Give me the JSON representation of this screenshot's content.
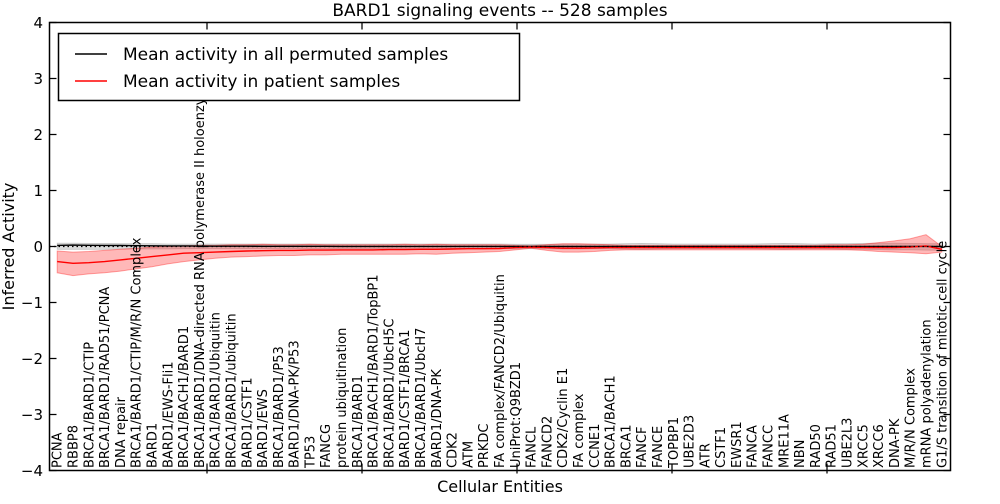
{
  "chart_data": {
    "type": "line",
    "title": "BARD1 signaling events -- 528 samples",
    "xlabel": "Cellular Entities",
    "ylabel": "Inferred Activity",
    "ylim": [
      -4,
      4
    ],
    "grid": false,
    "legend_position": "upper left",
    "zero_reference_line": {
      "value": 0,
      "style": "dotted",
      "color": "#000000"
    },
    "yticks": {
      "values": [
        4,
        3,
        2,
        1,
        0,
        -1,
        -2,
        -3,
        -4
      ],
      "labels": [
        "4",
        "3",
        "2",
        "1",
        "0",
        "−1",
        "−2",
        "−3",
        "−4"
      ]
    },
    "categories": [
      "PCNA",
      "RBBP8",
      "BRCA1/BARD1/CTIP",
      "BRCA1/BARD1/RAD51/PCNA",
      "DNA repair",
      "BRCA1/BARD1/CTIP/M/R/N Complex",
      "BARD1",
      "BARD1/EWS-Fli1",
      "BRCA1/BACH1/BARD1",
      "BRCA1/BARD1/DNA-directed RNA polymerase II holoenzyme",
      "BRCA1/BARD1/Ubiquitin",
      "BRCA1/BARD1/ubiquitin",
      "BARD1/CSTF1",
      "BARD1/EWS",
      "BRCA1/BARD1/P53",
      "BARD1/DNA-PK/P53",
      "TP53",
      "FANCG",
      "protein ubiquitination",
      "BRCA1/BARD1",
      "BRCA1/BACH1/BARD1/TopBP1",
      "BRCA1/BARD1/UbcH5C",
      "BARD1/CSTF1/BRCA1",
      "BRCA1/BARD1/UbcH7",
      "BARD1/DNA-PK",
      "CDK2",
      "ATM",
      "PRKDC",
      "FA complex/FANCD2/Ubiquitin",
      "UniProt:Q9BZD1",
      "FANCL",
      "FANCD2",
      "CDK2/Cyclin E1",
      "FA complex",
      "CCNE1",
      "BRCA1/BACH1",
      "BRCA1",
      "FANCF",
      "FANCE",
      "TOPBP1",
      "UBE2D3",
      "ATR",
      "CSTF1",
      "EWSR1",
      "FANCA",
      "FANCC",
      "MRE11A",
      "NBN",
      "RAD50",
      "RAD51",
      "UBE2L3",
      "XRCC5",
      "XRCC6",
      "DNA-PK",
      "M/R/N Complex",
      "mRNA polyadenylation",
      "G1/S transition of mitotic cell cycle"
    ],
    "legend": [
      {
        "label": "Mean activity in all permuted samples",
        "color": "#000000"
      },
      {
        "label": "Mean activity in patient samples",
        "color": "#ff0000"
      }
    ],
    "series": [
      {
        "name": "Mean activity in all permuted samples",
        "color": "#000000",
        "band_fill": "rgba(130,130,130,0.28)",
        "band_stroke": "rgba(120,120,120,0.35)",
        "values": [
          0.02,
          0.025,
          0.022,
          0.02,
          0.018,
          0.015,
          0.012,
          0.01,
          0.01,
          0.008,
          0.006,
          0.005,
          0.005,
          0.004,
          0.004,
          0.003,
          0.003,
          0.003,
          0.002,
          0.002,
          0.002,
          0.002,
          0.002,
          0.002,
          0.002,
          0.002,
          0.002,
          0.002,
          0.002,
          0.001,
          0.001,
          0.001,
          0.002,
          0.002,
          0.002,
          0.001,
          0.001,
          0.001,
          0.001,
          0.001,
          0.001,
          0.001,
          0.001,
          0.001,
          0.001,
          0.001,
          0.001,
          0.001,
          0.001,
          0.001,
          0.001,
          0.002,
          0.002,
          0.002,
          0.002,
          0.001,
          0.0
        ],
        "band_upper": [
          0.06,
          0.06,
          0.055,
          0.055,
          0.05,
          0.05,
          0.05,
          0.045,
          0.045,
          0.045,
          0.045,
          0.045,
          0.045,
          0.045,
          0.045,
          0.045,
          0.045,
          0.045,
          0.045,
          0.045,
          0.045,
          0.045,
          0.045,
          0.045,
          0.045,
          0.045,
          0.045,
          0.045,
          0.045,
          0.04,
          0.04,
          0.04,
          0.045,
          0.045,
          0.045,
          0.045,
          0.05,
          0.055,
          0.05,
          0.045,
          0.045,
          0.045,
          0.045,
          0.045,
          0.045,
          0.05,
          0.055,
          0.05,
          0.045,
          0.05,
          0.05,
          0.055,
          0.06,
          0.06,
          0.055,
          0.05,
          0.05
        ],
        "band_lower": [
          -0.05,
          -0.05,
          -0.05,
          -0.05,
          -0.045,
          -0.045,
          -0.045,
          -0.045,
          -0.04,
          -0.04,
          -0.04,
          -0.04,
          -0.04,
          -0.04,
          -0.04,
          -0.04,
          -0.04,
          -0.04,
          -0.04,
          -0.04,
          -0.04,
          -0.04,
          -0.04,
          -0.04,
          -0.04,
          -0.04,
          -0.04,
          -0.04,
          -0.04,
          -0.04,
          -0.04,
          -0.04,
          -0.045,
          -0.045,
          -0.04,
          -0.04,
          -0.045,
          -0.05,
          -0.045,
          -0.04,
          -0.04,
          -0.04,
          -0.04,
          -0.04,
          -0.04,
          -0.045,
          -0.05,
          -0.045,
          -0.04,
          -0.045,
          -0.05,
          -0.05,
          -0.055,
          -0.06,
          -0.06,
          -0.065,
          -0.07
        ]
      },
      {
        "name": "Mean activity in patient samples",
        "color": "#ff0000",
        "band_fill": "rgba(255,0,0,0.28)",
        "band_stroke": "rgba(255,0,0,0.35)",
        "values": [
          -0.27,
          -0.3,
          -0.29,
          -0.27,
          -0.24,
          -0.21,
          -0.18,
          -0.15,
          -0.12,
          -0.11,
          -0.1,
          -0.09,
          -0.08,
          -0.075,
          -0.07,
          -0.07,
          -0.065,
          -0.065,
          -0.06,
          -0.06,
          -0.06,
          -0.055,
          -0.055,
          -0.05,
          -0.05,
          -0.045,
          -0.04,
          -0.04,
          -0.035,
          -0.02,
          -0.01,
          -0.02,
          -0.03,
          -0.03,
          -0.025,
          -0.02,
          -0.02,
          -0.02,
          -0.02,
          -0.02,
          -0.02,
          -0.02,
          -0.02,
          -0.02,
          -0.02,
          -0.02,
          -0.02,
          -0.02,
          -0.02,
          -0.02,
          -0.02,
          -0.02,
          -0.02,
          -0.02,
          -0.01,
          0.01,
          -0.05
        ],
        "band_upper": [
          -0.08,
          -0.1,
          -0.09,
          -0.07,
          -0.05,
          -0.03,
          -0.01,
          0.0,
          0.01,
          0.02,
          0.02,
          0.03,
          0.03,
          0.04,
          0.03,
          0.03,
          0.04,
          0.03,
          0.03,
          0.03,
          0.03,
          0.03,
          0.04,
          0.03,
          0.04,
          0.03,
          0.03,
          0.03,
          0.03,
          0.02,
          0.01,
          0.03,
          0.05,
          0.05,
          0.04,
          0.03,
          0.02,
          0.02,
          0.02,
          0.02,
          0.02,
          0.02,
          0.02,
          0.02,
          0.02,
          0.02,
          0.02,
          0.02,
          0.02,
          0.03,
          0.03,
          0.04,
          0.07,
          0.1,
          0.14,
          0.21,
          0.0
        ],
        "band_lower": [
          -0.47,
          -0.52,
          -0.49,
          -0.47,
          -0.44,
          -0.4,
          -0.36,
          -0.31,
          -0.27,
          -0.24,
          -0.21,
          -0.19,
          -0.18,
          -0.17,
          -0.16,
          -0.16,
          -0.15,
          -0.15,
          -0.14,
          -0.14,
          -0.14,
          -0.14,
          -0.14,
          -0.13,
          -0.14,
          -0.12,
          -0.11,
          -0.1,
          -0.09,
          -0.06,
          -0.03,
          -0.07,
          -0.1,
          -0.1,
          -0.09,
          -0.07,
          -0.06,
          -0.06,
          -0.06,
          -0.06,
          -0.06,
          -0.06,
          -0.06,
          -0.06,
          -0.06,
          -0.06,
          -0.06,
          -0.06,
          -0.06,
          -0.06,
          -0.06,
          -0.07,
          -0.09,
          -0.1,
          -0.11,
          -0.13,
          -0.1
        ]
      }
    ]
  }
}
